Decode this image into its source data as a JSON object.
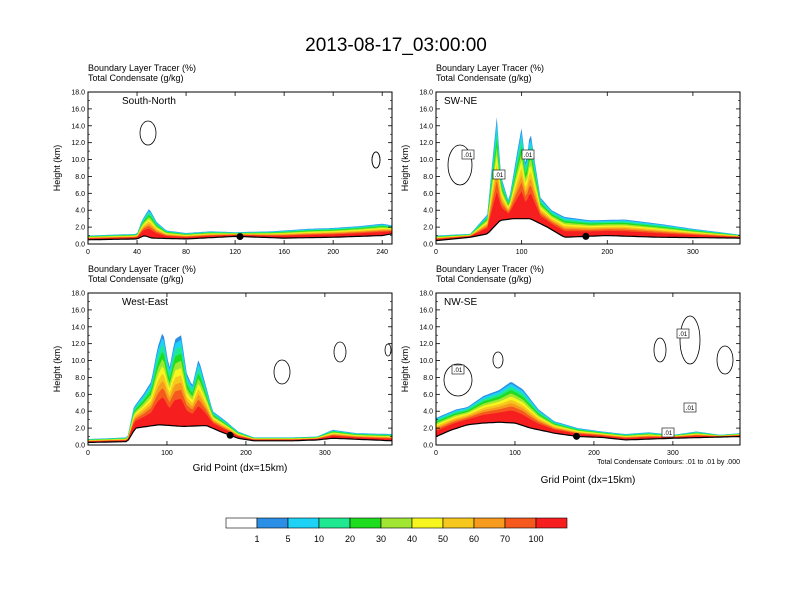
{
  "page": {
    "title": "2013-08-17_03:00:00"
  },
  "panel_header": {
    "line1": "Boundary Layer Tracer   (%)",
    "line2": "Total Condensate   (g/kg)"
  },
  "footnote": "Total Condensate Contours: .01 to .01 by .000",
  "colorbar": {
    "colors": [
      "#ffffff",
      "#2b8fe6",
      "#1ed2f6",
      "#1ee890",
      "#1edc1e",
      "#a0e632",
      "#f6f61e",
      "#f6c81e",
      "#f69b1e",
      "#f6591e",
      "#f61e1e"
    ],
    "labels": [
      "1",
      "5",
      "10",
      "20",
      "30",
      "40",
      "50",
      "60",
      "70",
      "100"
    ]
  },
  "chart_data": [
    {
      "type": "heatmap",
      "name": "South-North",
      "xlabel": "",
      "ylabel": "Height (km)",
      "xlim": [
        0,
        248
      ],
      "ylim": [
        0,
        18
      ],
      "xticks": [
        0,
        40,
        80,
        120,
        160,
        200,
        240
      ],
      "yticks": [
        0,
        2,
        4,
        6,
        8,
        10,
        12,
        14,
        16,
        18
      ],
      "terrain_km": [
        [
          0,
          0.5
        ],
        [
          40,
          0.6
        ],
        [
          46,
          1.0
        ],
        [
          52,
          0.7
        ],
        [
          80,
          0.6
        ],
        [
          120,
          0.9
        ],
        [
          160,
          0.7
        ],
        [
          200,
          0.8
        ],
        [
          240,
          1.0
        ],
        [
          248,
          1.2
        ]
      ],
      "tracer_top_km": [
        [
          0,
          1.0
        ],
        [
          40,
          1.2
        ],
        [
          44,
          2.8
        ],
        [
          50,
          4.2
        ],
        [
          56,
          2.6
        ],
        [
          64,
          1.6
        ],
        [
          80,
          1.3
        ],
        [
          100,
          1.5
        ],
        [
          120,
          1.4
        ],
        [
          150,
          1.5
        ],
        [
          180,
          1.8
        ],
        [
          200,
          1.9
        ],
        [
          220,
          2.1
        ],
        [
          240,
          2.4
        ],
        [
          248,
          2.2
        ]
      ],
      "contour_labels": [],
      "marker_x": 124
    },
    {
      "type": "heatmap",
      "name": "SW-NE",
      "xlabel": "",
      "ylabel": "Height (km)",
      "xlim": [
        0,
        355
      ],
      "ylim": [
        0,
        18
      ],
      "xticks": [
        0,
        100,
        200,
        300
      ],
      "yticks": [
        0,
        2,
        4,
        6,
        8,
        10,
        12,
        14,
        16,
        18
      ],
      "terrain_km": [
        [
          0,
          0.4
        ],
        [
          40,
          0.8
        ],
        [
          60,
          1.2
        ],
        [
          75,
          2.8
        ],
        [
          90,
          3.0
        ],
        [
          110,
          3.0
        ],
        [
          130,
          2.0
        ],
        [
          150,
          0.8
        ],
        [
          200,
          1.0
        ],
        [
          260,
          0.8
        ],
        [
          355,
          0.7
        ]
      ],
      "tracer_top_km": [
        [
          0,
          1.0
        ],
        [
          40,
          1.2
        ],
        [
          60,
          3.5
        ],
        [
          66,
          10.0
        ],
        [
          71,
          15.0
        ],
        [
          76,
          8.0
        ],
        [
          85,
          5.0
        ],
        [
          95,
          11.0
        ],
        [
          100,
          13.8
        ],
        [
          105,
          9.0
        ],
        [
          110,
          13.5
        ],
        [
          115,
          10.0
        ],
        [
          122,
          5.5
        ],
        [
          135,
          4.0
        ],
        [
          150,
          3.2
        ],
        [
          180,
          2.8
        ],
        [
          220,
          2.9
        ],
        [
          260,
          2.4
        ],
        [
          300,
          1.8
        ],
        [
          355,
          1.1
        ]
      ],
      "contour_labels": [
        ".01",
        ".01",
        ".01"
      ],
      "marker_x": 175
    },
    {
      "type": "heatmap",
      "name": "West-East",
      "xlabel": "Grid Point (dx=15km)",
      "ylabel": "Height (km)",
      "xlim": [
        0,
        385
      ],
      "ylim": [
        0,
        18
      ],
      "xticks": [
        0,
        100,
        200,
        300
      ],
      "yticks": [
        0,
        2,
        4,
        6,
        8,
        10,
        12,
        14,
        16,
        18
      ],
      "terrain_km": [
        [
          0,
          0.3
        ],
        [
          50,
          0.4
        ],
        [
          60,
          2.0
        ],
        [
          90,
          2.4
        ],
        [
          120,
          2.2
        ],
        [
          150,
          2.3
        ],
        [
          170,
          1.5
        ],
        [
          190,
          0.8
        ],
        [
          210,
          0.5
        ],
        [
          260,
          0.5
        ],
        [
          290,
          0.6
        ],
        [
          310,
          0.8
        ],
        [
          385,
          0.5
        ]
      ],
      "tracer_top_km": [
        [
          0,
          0.7
        ],
        [
          50,
          0.9
        ],
        [
          58,
          4.5
        ],
        [
          70,
          6.0
        ],
        [
          80,
          7.5
        ],
        [
          88,
          11.5
        ],
        [
          95,
          13.5
        ],
        [
          103,
          9.0
        ],
        [
          110,
          12.5
        ],
        [
          118,
          13.0
        ],
        [
          125,
          8.5
        ],
        [
          132,
          7.0
        ],
        [
          140,
          10.2
        ],
        [
          148,
          7.5
        ],
        [
          158,
          4.0
        ],
        [
          175,
          2.8
        ],
        [
          190,
          1.6
        ],
        [
          210,
          0.9
        ],
        [
          260,
          0.9
        ],
        [
          290,
          1.0
        ],
        [
          310,
          1.8
        ],
        [
          340,
          1.4
        ],
        [
          385,
          1.3
        ]
      ],
      "contour_labels": [],
      "marker_x": 180
    },
    {
      "type": "heatmap",
      "name": "NW-SE",
      "xlabel": "Grid Point (dx=15km)",
      "ylabel": "Height (km)",
      "xlim": [
        0,
        385
      ],
      "ylim": [
        0,
        18
      ],
      "xticks": [
        0,
        100,
        200,
        300
      ],
      "yticks": [
        0,
        2,
        4,
        6,
        8,
        10,
        12,
        14,
        16,
        18
      ],
      "terrain_km": [
        [
          0,
          1.0
        ],
        [
          20,
          1.8
        ],
        [
          40,
          2.4
        ],
        [
          60,
          2.6
        ],
        [
          80,
          2.7
        ],
        [
          100,
          2.6
        ],
        [
          120,
          2.0
        ],
        [
          150,
          1.4
        ],
        [
          180,
          1.0
        ],
        [
          210,
          0.9
        ],
        [
          240,
          0.6
        ],
        [
          300,
          0.8
        ],
        [
          385,
          1.0
        ]
      ],
      "tracer_top_km": [
        [
          0,
          3.2
        ],
        [
          25,
          4.2
        ],
        [
          40,
          4.5
        ],
        [
          60,
          5.8
        ],
        [
          80,
          6.5
        ],
        [
          95,
          7.5
        ],
        [
          110,
          6.6
        ],
        [
          130,
          4.2
        ],
        [
          150,
          2.8
        ],
        [
          180,
          2.0
        ],
        [
          210,
          1.6
        ],
        [
          240,
          1.3
        ],
        [
          270,
          1.5
        ],
        [
          300,
          1.2
        ],
        [
          330,
          1.6
        ],
        [
          360,
          1.2
        ],
        [
          385,
          1.4
        ]
      ],
      "contour_labels": [
        ".01",
        ".01",
        ".01",
        ".01"
      ],
      "marker_x": 178
    }
  ]
}
